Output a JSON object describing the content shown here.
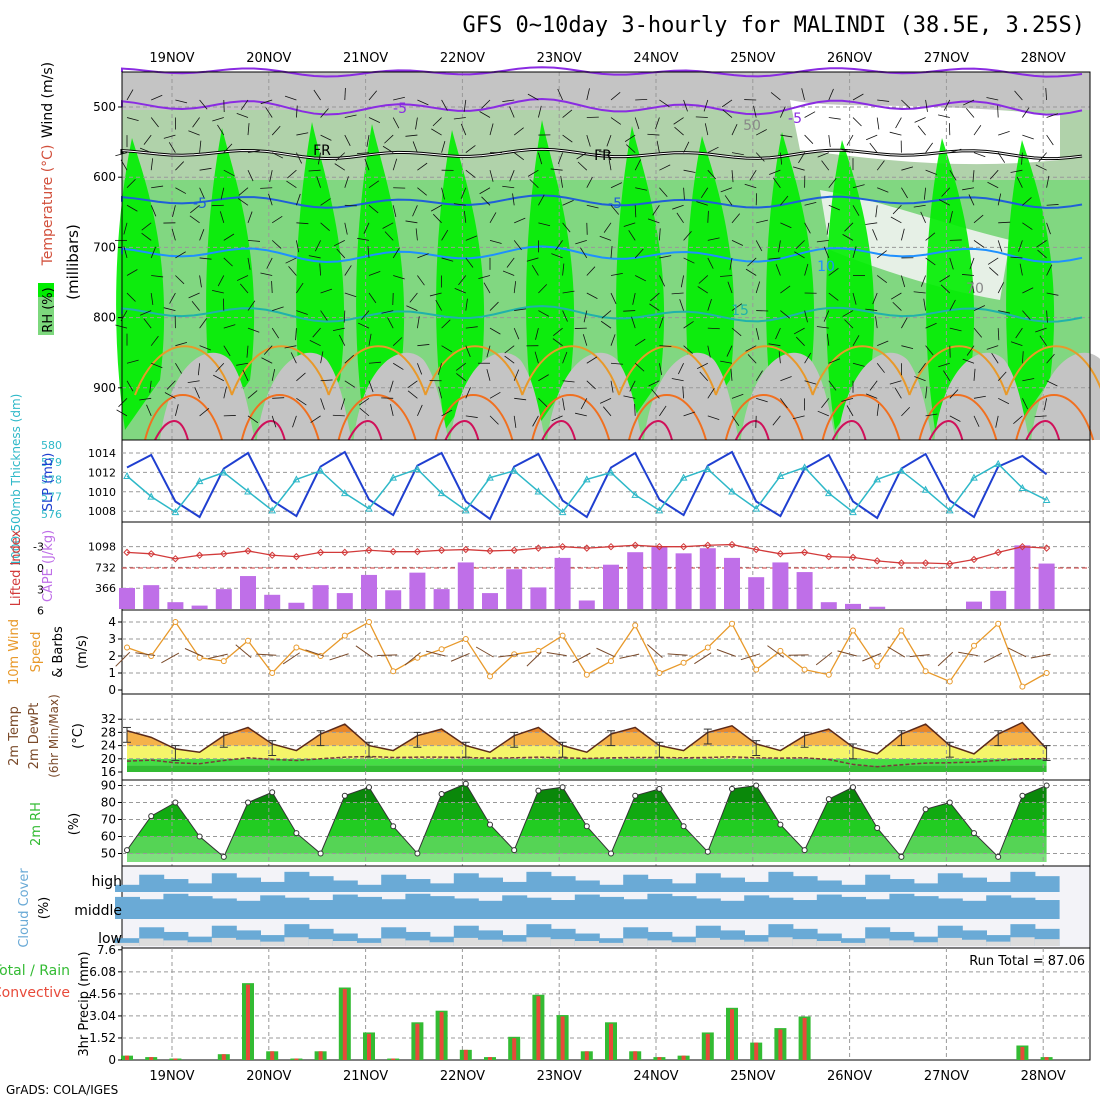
{
  "title": "GFS 0~10day 3-hourly for MALINDI (38.5E, 3.25S)",
  "footer": "GrADS: COLA/IGES",
  "run_total_label": "Run Total = 87.06",
  "dates": [
    "19NOV",
    "20NOV",
    "21NOV",
    "22NOV",
    "23NOV",
    "24NOV",
    "25NOV",
    "26NOV",
    "27NOV",
    "28NOV"
  ],
  "colors": {
    "rh_light": "#7dd87d",
    "rh_bright": "#00ee00",
    "rh_grey": "#c4c4c4",
    "slp": "#1f3fd0",
    "thickness": "#2eb8c8",
    "li": "#d23a3a",
    "cape": "#bf6fe8",
    "wind10": "#e8992a",
    "barb": "#7a4a2a",
    "cloud_blue": "#6aaad6",
    "cloud_light": "#dcdcdc",
    "precip_total": "#33bb33",
    "precip_conv": "#e84a3a"
  },
  "panels": {
    "upper": {
      "ylabel_rh": "RH (%)",
      "ylabel_temp": "Temperature (°C)",
      "ylabel_wind": "Wind (m/s)",
      "ylabel_mb": "(millibars)",
      "yticks": [
        "500",
        "600",
        "700",
        "800",
        "900"
      ],
      "contour_labels": [
        "-5",
        "-5",
        "FR",
        "FR",
        "-5",
        "-5",
        "10",
        "15",
        "50",
        "70"
      ]
    },
    "slp": {
      "ylabel_thk": "1000-500mb Thickness (dm)",
      "ylabel_slp": "SLP (mb)",
      "ticks_thk": [
        "580",
        "579",
        "578",
        "577",
        "576"
      ],
      "ticks_slp": [
        "1014",
        "1012",
        "1010",
        "1008"
      ]
    },
    "cape": {
      "ylabel_li": "Lifted Index",
      "ylabel_cape": "CAPE (J/kg)",
      "ticks_li": [
        "-3",
        "0",
        "3",
        "6"
      ],
      "ticks_cape": [
        "1098",
        "732",
        "366"
      ]
    },
    "wind": {
      "ylabel1": "10m Wind",
      "ylabel2": "Speed",
      "ylabel3": "& Barbs",
      "ylabel_units": "(m/s)",
      "yticks": [
        "4",
        "3",
        "2",
        "1",
        "0"
      ]
    },
    "temp": {
      "ylabel1": "2m Temp",
      "ylabel2": "2m DewPt",
      "ylabel3": "(6hr Min/Max)",
      "ylabel_units": "(°C)",
      "yticks": [
        "32",
        "28",
        "24",
        "20",
        "16"
      ]
    },
    "rh": {
      "ylabel": "2m RH",
      "ylabel_units": "(%)",
      "yticks": [
        "90",
        "80",
        "70",
        "60",
        "50"
      ]
    },
    "cloud": {
      "ylabel": "Cloud Cover",
      "ylabel_units": "(%)",
      "levels": [
        "high",
        "middle",
        "low"
      ]
    },
    "precip": {
      "ylabel1": "Total / Rain",
      "ylabel2": "Convective",
      "ylabel_units": "3hr Precip (mm)",
      "yticks": [
        "7.6",
        "6.08",
        "4.56",
        "3.04",
        "1.52",
        "0"
      ]
    }
  },
  "chart_data": [
    {
      "type": "line",
      "panel": "sea-level pressure and 1000-500mb thickness",
      "x": [
        "19NOV 00Z",
        "19NOV 06Z",
        "19NOV 12Z",
        "19NOV 18Z",
        "20NOV 00Z",
        "20NOV 06Z",
        "20NOV 12Z",
        "20NOV 18Z",
        "21NOV 00Z",
        "21NOV 06Z",
        "21NOV 12Z",
        "21NOV 18Z",
        "22NOV 00Z",
        "22NOV 06Z",
        "22NOV 12Z",
        "22NOV 18Z",
        "23NOV 00Z",
        "23NOV 06Z",
        "23NOV 12Z",
        "23NOV 18Z",
        "24NOV 00Z",
        "24NOV 06Z",
        "24NOV 12Z",
        "24NOV 18Z",
        "25NOV 00Z",
        "25NOV 06Z",
        "25NOV 12Z",
        "25NOV 18Z",
        "26NOV 00Z",
        "26NOV 06Z",
        "26NOV 12Z",
        "26NOV 18Z",
        "27NOV 00Z",
        "27NOV 06Z",
        "27NOV 12Z",
        "27NOV 18Z",
        "28NOV 00Z",
        "28NOV 06Z",
        "28NOV 12Z"
      ],
      "series": [
        {
          "name": "SLP (mb)",
          "values": [
            1012.5,
            1013.8,
            1009.0,
            1007.4,
            1012.4,
            1014.0,
            1009.1,
            1007.5,
            1012.6,
            1014.1,
            1009.2,
            1007.6,
            1012.7,
            1014.0,
            1009.0,
            1007.2,
            1012.6,
            1013.9,
            1009.1,
            1007.4,
            1012.5,
            1014.0,
            1009.2,
            1007.6,
            1012.7,
            1014.1,
            1009.0,
            1007.5,
            1012.4,
            1013.8,
            1009.0,
            1007.3,
            1012.4,
            1013.9,
            1009.1,
            1007.4,
            1012.6,
            1013.7,
            1011.8
          ]
        },
        {
          "name": "1000-500mb Thickness (dm)",
          "values": [
            578.2,
            577.0,
            576.1,
            577.9,
            578.4,
            577.3,
            576.2,
            578.0,
            578.5,
            577.2,
            576.3,
            578.1,
            578.6,
            577.2,
            576.2,
            578.1,
            578.5,
            577.3,
            576.1,
            578.0,
            578.4,
            577.1,
            576.2,
            578.1,
            578.6,
            577.3,
            576.3,
            578.2,
            578.7,
            577.2,
            576.1,
            578.0,
            578.5,
            577.4,
            576.2,
            578.1,
            578.9,
            577.5,
            576.8
          ]
        }
      ]
    },
    {
      "type": "bar",
      "panel": "CAPE and Lifted Index",
      "x": [
        "19NOV 00Z",
        "19NOV 06Z",
        "19NOV 12Z",
        "19NOV 18Z",
        "20NOV 00Z",
        "20NOV 06Z",
        "20NOV 12Z",
        "20NOV 18Z",
        "21NOV 00Z",
        "21NOV 06Z",
        "21NOV 12Z",
        "21NOV 18Z",
        "22NOV 00Z",
        "22NOV 06Z",
        "22NOV 12Z",
        "22NOV 18Z",
        "23NOV 00Z",
        "23NOV 06Z",
        "23NOV 12Z",
        "23NOV 18Z",
        "24NOV 00Z",
        "24NOV 06Z",
        "24NOV 12Z",
        "24NOV 18Z",
        "25NOV 00Z",
        "25NOV 06Z",
        "25NOV 12Z",
        "25NOV 18Z",
        "26NOV 00Z",
        "26NOV 06Z",
        "26NOV 12Z",
        "26NOV 18Z",
        "27NOV 00Z",
        "27NOV 06Z",
        "27NOV 12Z",
        "27NOV 18Z",
        "28NOV 00Z",
        "28NOV 06Z",
        "28NOV 12Z"
      ],
      "series": [
        {
          "name": "CAPE (J/kg)",
          "values": [
            370,
            420,
            120,
            60,
            350,
            580,
            250,
            110,
            420,
            280,
            600,
            330,
            640,
            350,
            820,
            280,
            700,
            380,
            900,
            150,
            780,
            1000,
            1100,
            980,
            1070,
            900,
            560,
            820,
            650,
            120,
            90,
            40,
            0,
            0,
            0,
            130,
            320,
            1120,
            800
          ]
        },
        {
          "name": "Lifted Index",
          "values": [
            -2.2,
            -2.0,
            -1.3,
            -1.8,
            -2.0,
            -2.4,
            -1.8,
            -1.6,
            -2.2,
            -2.2,
            -2.5,
            -2.3,
            -2.3,
            -2.5,
            -2.6,
            -2.4,
            -2.5,
            -2.8,
            -3.0,
            -2.8,
            -3.0,
            -3.2,
            -3.0,
            -3.0,
            -3.2,
            -3.3,
            -2.6,
            -2.0,
            -2.2,
            -1.6,
            -1.5,
            -1.0,
            -0.7,
            -0.7,
            -0.6,
            -1.2,
            -2.2,
            -3.0,
            -2.8
          ]
        }
      ]
    },
    {
      "type": "line",
      "panel": "10m wind speed",
      "x": [
        "19NOV 00Z",
        "19NOV 06Z",
        "19NOV 12Z",
        "19NOV 18Z",
        "20NOV 00Z",
        "20NOV 06Z",
        "20NOV 12Z",
        "20NOV 18Z",
        "21NOV 00Z",
        "21NOV 06Z",
        "21NOV 12Z",
        "21NOV 18Z",
        "22NOV 00Z",
        "22NOV 06Z",
        "22NOV 12Z",
        "22NOV 18Z",
        "23NOV 00Z",
        "23NOV 06Z",
        "23NOV 12Z",
        "23NOV 18Z",
        "24NOV 00Z",
        "24NOV 06Z",
        "24NOV 12Z",
        "24NOV 18Z",
        "25NOV 00Z",
        "25NOV 06Z",
        "25NOV 12Z",
        "25NOV 18Z",
        "26NOV 00Z",
        "26NOV 06Z",
        "26NOV 12Z",
        "26NOV 18Z",
        "27NOV 00Z",
        "27NOV 06Z",
        "27NOV 12Z",
        "27NOV 18Z",
        "28NOV 00Z",
        "28NOV 06Z",
        "28NOV 12Z"
      ],
      "series": [
        {
          "name": "Speed (m/s)",
          "values": [
            2.5,
            2.0,
            4.0,
            1.9,
            1.7,
            2.9,
            1.0,
            2.5,
            2.0,
            3.2,
            4.0,
            1.1,
            1.9,
            2.4,
            3.0,
            0.8,
            2.1,
            2.3,
            3.2,
            0.9,
            1.7,
            3.8,
            1.0,
            1.6,
            2.5,
            3.9,
            1.2,
            2.3,
            1.2,
            0.9,
            3.5,
            1.4,
            3.5,
            1.1,
            0.5,
            2.6,
            3.9,
            0.2,
            1.0
          ]
        }
      ]
    },
    {
      "type": "area",
      "panel": "2m temperature and dew point",
      "x": [
        "19NOV 00Z",
        "19NOV 06Z",
        "19NOV 12Z",
        "19NOV 18Z",
        "20NOV 00Z",
        "20NOV 06Z",
        "20NOV 12Z",
        "20NOV 18Z",
        "21NOV 00Z",
        "21NOV 06Z",
        "21NOV 12Z",
        "21NOV 18Z",
        "22NOV 00Z",
        "22NOV 06Z",
        "22NOV 12Z",
        "22NOV 18Z",
        "23NOV 00Z",
        "23NOV 06Z",
        "23NOV 12Z",
        "23NOV 18Z",
        "24NOV 00Z",
        "24NOV 06Z",
        "24NOV 12Z",
        "24NOV 18Z",
        "25NOV 00Z",
        "25NOV 06Z",
        "25NOV 12Z",
        "25NOV 18Z",
        "26NOV 00Z",
        "26NOV 06Z",
        "26NOV 12Z",
        "26NOV 18Z",
        "27NOV 00Z",
        "27NOV 06Z",
        "27NOV 12Z",
        "27NOV 18Z",
        "28NOV 00Z",
        "28NOV 06Z",
        "28NOV 12Z"
      ],
      "series": [
        {
          "name": "2m Temp (°C)",
          "values": [
            28.5,
            26.5,
            23.0,
            22.0,
            27.0,
            29.5,
            24.5,
            22.5,
            27.5,
            30.5,
            24.0,
            22.5,
            27.0,
            29.0,
            24.0,
            22.0,
            27.0,
            29.5,
            24.0,
            22.0,
            27.5,
            29.5,
            24.0,
            22.5,
            28.0,
            30.0,
            24.5,
            22.5,
            27.0,
            29.0,
            23.5,
            21.5,
            27.5,
            30.5,
            24.0,
            21.5,
            27.5,
            31.0,
            23.0
          ]
        },
        {
          "name": "2m DewPt (°C)",
          "values": [
            19.3,
            19.6,
            18.8,
            18.5,
            19.5,
            20.3,
            19.8,
            19.5,
            20.0,
            20.5,
            20.7,
            20.4,
            20.5,
            20.5,
            20.4,
            20.2,
            20.3,
            20.5,
            20.3,
            20.1,
            20.3,
            20.4,
            20.4,
            20.3,
            20.4,
            20.6,
            20.3,
            20.2,
            20.3,
            19.8,
            18.3,
            17.6,
            18.2,
            18.7,
            18.8,
            19.0,
            19.5,
            20.0,
            20.0
          ]
        }
      ]
    },
    {
      "type": "area",
      "panel": "2m relative humidity",
      "x": [
        "19NOV 00Z",
        "19NOV 06Z",
        "19NOV 12Z",
        "19NOV 18Z",
        "20NOV 00Z",
        "20NOV 06Z",
        "20NOV 12Z",
        "20NOV 18Z",
        "21NOV 00Z",
        "21NOV 06Z",
        "21NOV 12Z",
        "21NOV 18Z",
        "22NOV 00Z",
        "22NOV 06Z",
        "22NOV 12Z",
        "22NOV 18Z",
        "23NOV 00Z",
        "23NOV 06Z",
        "23NOV 12Z",
        "23NOV 18Z",
        "24NOV 00Z",
        "24NOV 06Z",
        "24NOV 12Z",
        "24NOV 18Z",
        "25NOV 00Z",
        "25NOV 06Z",
        "25NOV 12Z",
        "25NOV 18Z",
        "26NOV 00Z",
        "26NOV 06Z",
        "26NOV 12Z",
        "26NOV 18Z",
        "27NOV 00Z",
        "27NOV 06Z",
        "27NOV 12Z",
        "27NOV 18Z",
        "28NOV 00Z",
        "28NOV 06Z",
        "28NOV 12Z"
      ],
      "series": [
        {
          "name": "2m RH (%)",
          "values": [
            52,
            72,
            80,
            60,
            48,
            80,
            86,
            62,
            50,
            84,
            89,
            66,
            50,
            85,
            91,
            67,
            52,
            87,
            89,
            66,
            50,
            84,
            88,
            66,
            51,
            88,
            90,
            67,
            52,
            82,
            89,
            65,
            48,
            76,
            80,
            62,
            48,
            84,
            90
          ]
        }
      ]
    },
    {
      "type": "bar",
      "panel": "3hr precipitation",
      "x": [
        "19NOV 00Z",
        "19NOV 06Z",
        "19NOV 12Z",
        "19NOV 18Z",
        "20NOV 00Z",
        "20NOV 06Z",
        "20NOV 12Z",
        "20NOV 18Z",
        "21NOV 00Z",
        "21NOV 06Z",
        "21NOV 12Z",
        "21NOV 18Z",
        "22NOV 00Z",
        "22NOV 06Z",
        "22NOV 12Z",
        "22NOV 18Z",
        "23NOV 00Z",
        "23NOV 06Z",
        "23NOV 12Z",
        "23NOV 18Z",
        "24NOV 00Z",
        "24NOV 06Z",
        "24NOV 12Z",
        "24NOV 18Z",
        "25NOV 00Z",
        "25NOV 06Z",
        "25NOV 12Z",
        "25NOV 18Z",
        "26NOV 00Z",
        "26NOV 06Z",
        "26NOV 12Z",
        "26NOV 18Z",
        "27NOV 00Z",
        "27NOV 06Z",
        "27NOV 12Z",
        "27NOV 18Z",
        "28NOV 00Z",
        "28NOV 06Z",
        "28NOV 12Z"
      ],
      "series": [
        {
          "name": "Total / Rain (mm)",
          "values": [
            0.3,
            0.2,
            0.1,
            0.0,
            0.4,
            5.3,
            0.6,
            0.1,
            0.6,
            5.0,
            1.9,
            0.1,
            2.6,
            3.4,
            0.7,
            0.2,
            1.6,
            4.5,
            3.1,
            0.6,
            2.6,
            0.6,
            0.2,
            0.3,
            1.9,
            3.6,
            1.2,
            2.2,
            3.0,
            0.0,
            0.0,
            0.0,
            0.0,
            0.0,
            0.0,
            0.0,
            0.0,
            1.0,
            0.2
          ]
        },
        {
          "name": "Convective (mm)",
          "values": [
            0.3,
            0.2,
            0.1,
            0.0,
            0.4,
            5.2,
            0.6,
            0.1,
            0.6,
            4.9,
            1.8,
            0.1,
            2.5,
            3.3,
            0.7,
            0.2,
            1.5,
            4.4,
            3.0,
            0.6,
            2.5,
            0.6,
            0.2,
            0.3,
            1.8,
            3.5,
            1.2,
            2.1,
            2.9,
            0.0,
            0.0,
            0.0,
            0.0,
            0.0,
            0.0,
            0.0,
            0.0,
            0.9,
            0.2
          ]
        }
      ]
    }
  ]
}
